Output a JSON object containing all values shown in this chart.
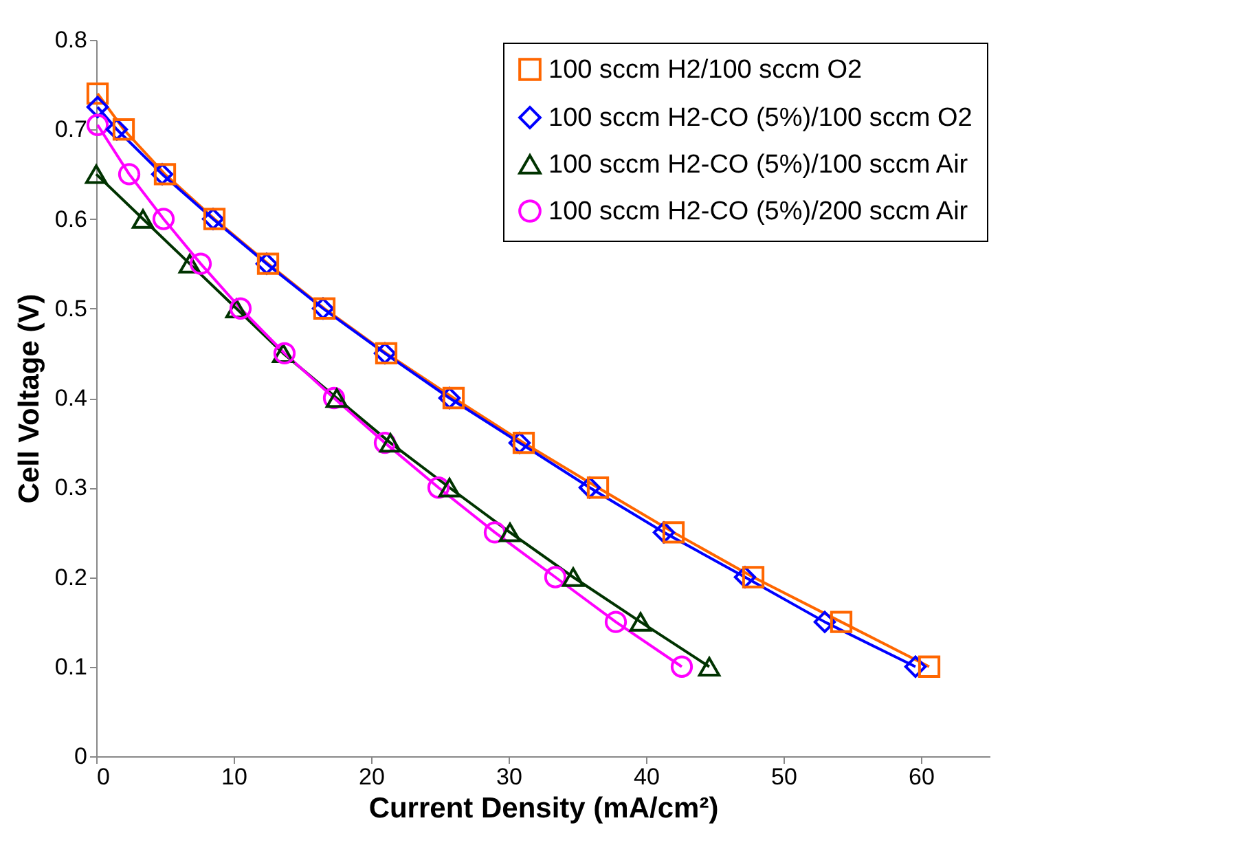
{
  "chart_data": {
    "type": "line",
    "xlabel": "Current Density (mA/cm²)",
    "ylabel": "Cell Voltage (V)",
    "xlim": [
      0,
      65
    ],
    "xticks": [
      0,
      10,
      20,
      30,
      40,
      50,
      60
    ],
    "ylim": [
      0,
      0.8
    ],
    "yticks": [
      0,
      0.1,
      0.2,
      0.3,
      0.4,
      0.5,
      0.6,
      0.7,
      0.8
    ],
    "legend": "top right",
    "series": [
      {
        "name": "100 sccm H2/100 sccm O2",
        "color": "#ff6600",
        "marker": "square",
        "x": [
          0.1,
          2.0,
          5.0,
          8.6,
          12.5,
          16.6,
          21.1,
          26.0,
          31.1,
          36.5,
          42.0,
          47.8,
          54.2,
          60.6
        ],
        "values": [
          0.74,
          0.7,
          0.65,
          0.6,
          0.55,
          0.5,
          0.45,
          0.4,
          0.35,
          0.3,
          0.25,
          0.2,
          0.15,
          0.1
        ]
      },
      {
        "name": "100 sccm H2-CO (5%)/100 sccm O2",
        "color": "#0000ff",
        "marker": "diamond",
        "x": [
          0.1,
          1.5,
          4.8,
          8.5,
          12.4,
          16.5,
          21.0,
          25.7,
          30.8,
          35.9,
          41.3,
          47.2,
          53.0,
          59.6
        ],
        "values": [
          0.725,
          0.7,
          0.65,
          0.6,
          0.55,
          0.5,
          0.45,
          0.4,
          0.35,
          0.3,
          0.25,
          0.2,
          0.15,
          0.1
        ]
      },
      {
        "name": "100 sccm H2-CO (5%)/100 sccm Air",
        "color": "#003300",
        "marker": "triangle",
        "x": [
          0,
          3.4,
          6.8,
          10.2,
          13.6,
          17.5,
          21.4,
          25.7,
          30.1,
          34.7,
          39.6,
          44.6
        ],
        "values": [
          0.65,
          0.6,
          0.55,
          0.5,
          0.45,
          0.4,
          0.35,
          0.3,
          0.25,
          0.2,
          0.15,
          0.1
        ]
      },
      {
        "name": "100 sccm H2-CO (5%)/200 sccm Air",
        "color": "#ff00ff",
        "marker": "circle",
        "x": [
          0.1,
          2.4,
          4.9,
          7.6,
          10.5,
          13.7,
          17.3,
          21.0,
          24.9,
          29.0,
          33.4,
          37.8,
          42.6
        ],
        "values": [
          0.705,
          0.65,
          0.6,
          0.55,
          0.5,
          0.45,
          0.4,
          0.35,
          0.3,
          0.25,
          0.2,
          0.15,
          0.1
        ]
      }
    ]
  }
}
